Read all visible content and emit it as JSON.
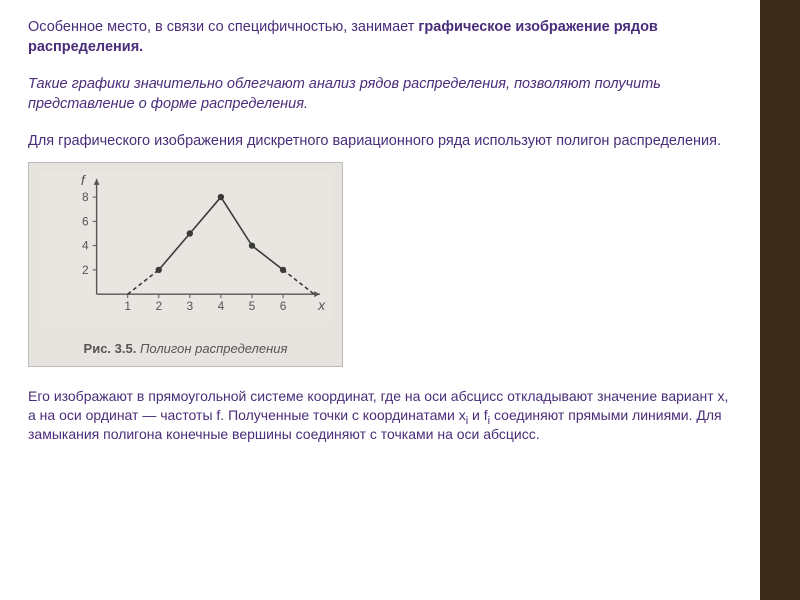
{
  "paragraphs": {
    "p1a": "Особенное место, в связи со специфичностью, занимает ",
    "p1b": "графическое изображение рядов распределения.",
    "p2": "Такие графики значительно облегчают анализ рядов распределения, позволяют получить представление о форме распределения.",
    "p3": "Для графического изображения дискретного вариационного ряда используют полигон распределения.",
    "p4": "Его изображают в прямоугольной системе координат, где на оси абсцисс откладывают значение вариант x, а на оси ординат — частоты f. Полученные точки с координатами x",
    "p4sub1": "i",
    "p4mid": " и f",
    "p4sub2": "i",
    "p4b": " соединяют прямыми линиями. Для замыкания полигона конечные вершины соединяют с точками на оси абсцисс."
  },
  "chart": {
    "type": "line",
    "caption_bold": "Рис. 3.5.",
    "caption_italic": "  Полигон распределения",
    "y_label": "f",
    "x_label": "x",
    "x_ticks": [
      1,
      2,
      3,
      4,
      5,
      6
    ],
    "y_ticks": [
      2,
      4,
      6,
      8
    ],
    "xlim": [
      0,
      7
    ],
    "ylim": [
      0,
      9
    ],
    "points": [
      {
        "x": 1,
        "y": 0,
        "dashed_to_next": true
      },
      {
        "x": 2,
        "y": 2,
        "dashed_to_next": false
      },
      {
        "x": 3,
        "y": 5,
        "dashed_to_next": false
      },
      {
        "x": 4,
        "y": 8,
        "dashed_to_next": false
      },
      {
        "x": 5,
        "y": 4,
        "dashed_to_next": false
      },
      {
        "x": 6,
        "y": 2,
        "dashed_to_next": true
      },
      {
        "x": 7,
        "y": 0,
        "dashed_to_next": false
      }
    ],
    "marker_points_idx": [
      1,
      2,
      3,
      4,
      5
    ],
    "colors": {
      "bg": "#e7e4df",
      "axis": "#555555",
      "line": "#3a3a3a",
      "marker": "#3a3a3a",
      "tick_text": "#555555"
    },
    "axis_stroke_width": 1.4,
    "line_stroke_width": 1.6,
    "marker_radius": 3.2,
    "tick_font_size": 12,
    "label_font_size": 14
  }
}
